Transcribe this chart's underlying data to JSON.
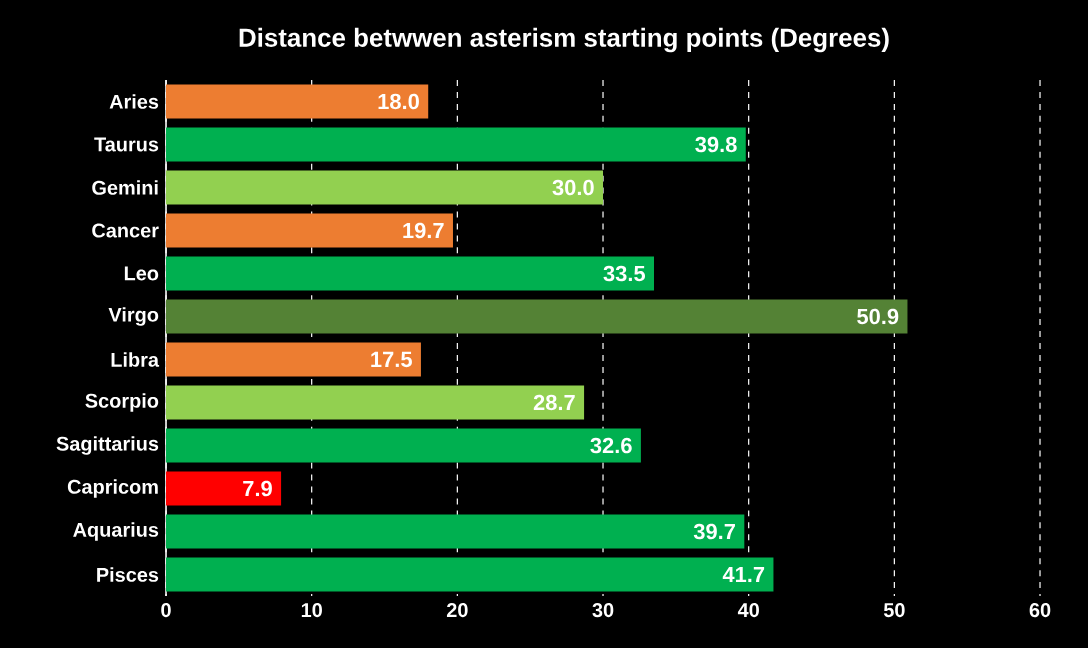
{
  "chart_data": {
    "type": "bar",
    "orientation": "horizontal",
    "title": "Distance betwwen asterism starting points (Degrees)",
    "categories": [
      "Aries",
      "Taurus",
      "Gemini",
      "Cancer",
      "Leo",
      "Virgo",
      "Libra",
      "Scorpio",
      "Sagittarius",
      "Capricom",
      "Aquarius",
      "Pisces"
    ],
    "values": [
      18.0,
      39.8,
      30.0,
      19.7,
      33.5,
      50.9,
      17.5,
      28.7,
      32.6,
      7.9,
      39.7,
      41.7
    ],
    "colors": [
      "#ed7d31",
      "#00b050",
      "#92d050",
      "#ed7d31",
      "#00b050",
      "#548235",
      "#ed7d31",
      "#92d050",
      "#00b050",
      "#ff0000",
      "#00b050",
      "#00b050"
    ],
    "value_labels": [
      "18.0",
      "39.8",
      "30.0",
      "19.7",
      "33.5",
      "50.9",
      "17.5",
      "28.7",
      "32.6",
      "7.9",
      "39.7",
      "41.7"
    ],
    "xlim": [
      0,
      60
    ],
    "xticks": [
      0,
      10,
      20,
      30,
      40,
      50,
      60
    ],
    "grid": "x"
  }
}
